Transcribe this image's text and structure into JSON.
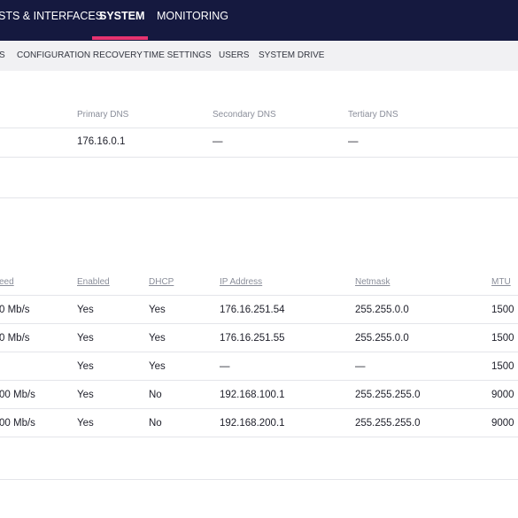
{
  "top_nav": {
    "items": [
      {
        "label": "STS & INTERFACES"
      },
      {
        "label": "SYSTEM"
      },
      {
        "label": "MONITORING"
      }
    ]
  },
  "sub_nav": {
    "items": [
      {
        "label": "S"
      },
      {
        "label": "CONFIGURATION RECOVERY"
      },
      {
        "label": "TIME SETTINGS"
      },
      {
        "label": "USERS"
      },
      {
        "label": "SYSTEM DRIVE"
      }
    ]
  },
  "dns": {
    "headers": {
      "primary": "Primary DNS",
      "secondary": "Secondary DNS",
      "tertiary": "Tertiary DNS"
    },
    "row": {
      "primary": "176.16.0.1",
      "secondary": "—",
      "tertiary": "—"
    }
  },
  "interfaces": {
    "headers": {
      "speed": "eed",
      "enabled": "Enabled",
      "dhcp": "DHCP",
      "ip": "IP Address",
      "netmask": "Netmask",
      "mtu": "MTU"
    },
    "rows": [
      {
        "speed": "0 Mb/s",
        "enabled": "Yes",
        "dhcp": "Yes",
        "ip": "176.16.251.54",
        "netmask": "255.255.0.0",
        "mtu": "1500"
      },
      {
        "speed": "0 Mb/s",
        "enabled": "Yes",
        "dhcp": "Yes",
        "ip": "176.16.251.55",
        "netmask": "255.255.0.0",
        "mtu": "1500"
      },
      {
        "speed": "",
        "enabled": "Yes",
        "dhcp": "Yes",
        "ip": "—",
        "netmask": "—",
        "mtu": "1500"
      },
      {
        "speed": "00 Mb/s",
        "enabled": "Yes",
        "dhcp": "No",
        "ip": "192.168.100.1",
        "netmask": "255.255.255.0",
        "mtu": "9000"
      },
      {
        "speed": "00 Mb/s",
        "enabled": "Yes",
        "dhcp": "No",
        "ip": "192.168.200.1",
        "netmask": "255.255.255.0",
        "mtu": "9000"
      }
    ]
  }
}
